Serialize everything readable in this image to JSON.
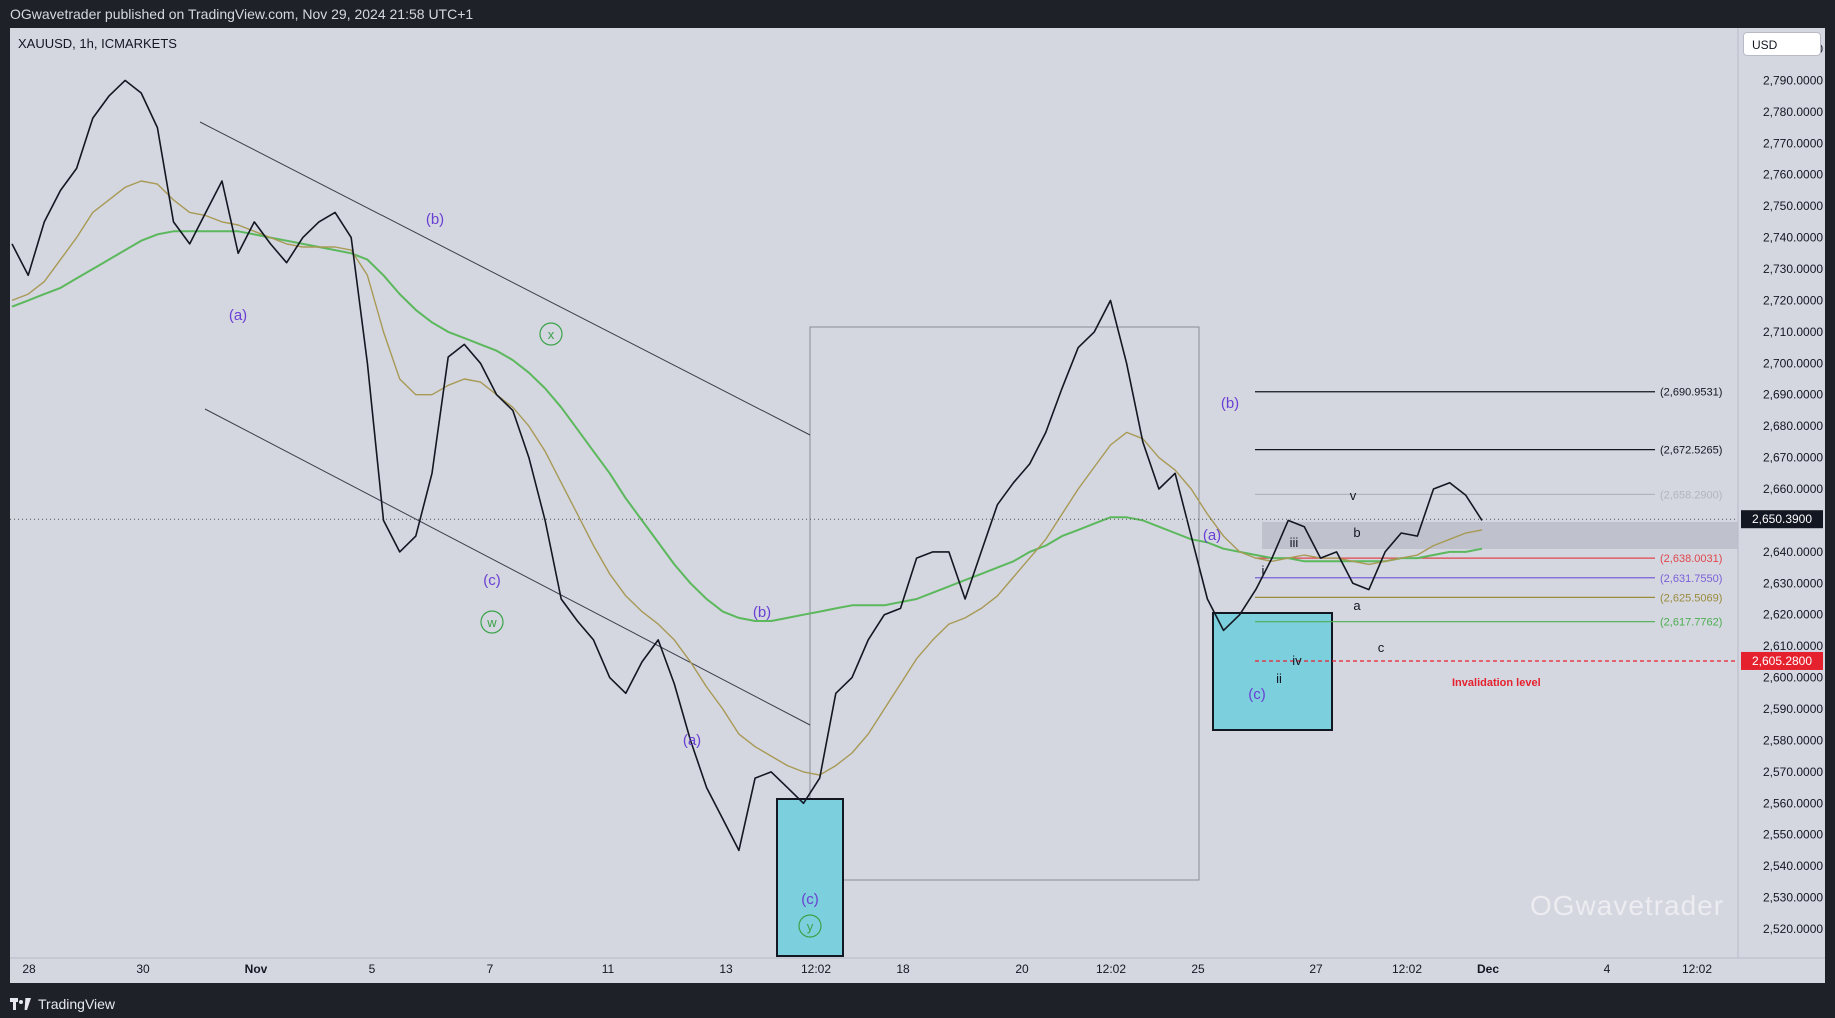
{
  "header": {
    "published": "OGwavetrader published on TradingView.com, Nov 29, 2024 21:58 UTC+1"
  },
  "footer": {
    "brand": "TradingView"
  },
  "chart_data": {
    "type": "line",
    "title": "XAUUSD, 1h, ICMARKETS",
    "currency": "USD",
    "ylim": [
      2510,
      2810
    ],
    "y_ticks": [
      "2,520.0000",
      "2,530.0000",
      "2,540.0000",
      "2,550.0000",
      "2,560.0000",
      "2,570.0000",
      "2,580.0000",
      "2,590.0000",
      "2,600.0000",
      "2,610.0000",
      "2,620.0000",
      "2,630.0000",
      "2,640.0000",
      "2,650.0000",
      "2,660.0000",
      "2,670.0000",
      "2,680.0000",
      "2,690.0000",
      "2,700.0000",
      "2,710.0000",
      "2,720.0000",
      "2,730.0000",
      "2,740.0000",
      "2,750.0000",
      "2,760.0000",
      "2,770.0000",
      "2,780.0000",
      "2,790.0000",
      "2,800.0000"
    ],
    "x_ticks": [
      "28",
      "30",
      "Nov",
      "5",
      "7",
      "11",
      "13",
      "12:02",
      "18",
      "20",
      "12:02",
      "25",
      "27",
      "12:02",
      "Dec",
      "4",
      "12:02"
    ],
    "series": [
      {
        "values": [
          2738,
          2728,
          2745,
          2755,
          2762,
          2778,
          2785,
          2790,
          2786,
          2775,
          2745,
          2738,
          2748,
          2758,
          2735,
          2745,
          2738,
          2732,
          2740,
          2745,
          2748,
          2740,
          2700,
          2650,
          2640,
          2645,
          2665,
          2702,
          2706,
          2700,
          2690,
          2685,
          2670,
          2650,
          2625,
          2618,
          2612,
          2600,
          2595,
          2605,
          2612,
          2598,
          2580,
          2565,
          2555,
          2545,
          2568,
          2570,
          2565,
          2560,
          2568,
          2595,
          2600,
          2612,
          2620,
          2622,
          2638,
          2640,
          2640,
          2625,
          2640,
          2655,
          2662,
          2668,
          2678,
          2692,
          2705,
          2710,
          2720,
          2700,
          2675,
          2660,
          2665,
          2645,
          2625,
          2615,
          2620,
          2628,
          2638,
          2650,
          2648,
          2638,
          2640,
          2630,
          2628,
          2640,
          2646,
          2645,
          2660,
          2662,
          2658,
          2650
        ]
      },
      {
        "name": "MA",
        "values": [
          2720,
          2722,
          2726,
          2733,
          2740,
          2748,
          2752,
          2756,
          2758,
          2757,
          2752,
          2748,
          2747,
          2745,
          2744,
          2742,
          2740,
          2738,
          2737,
          2737,
          2737,
          2736,
          2728,
          2710,
          2695,
          2690,
          2690,
          2693,
          2695,
          2694,
          2690,
          2686,
          2680,
          2672,
          2662,
          2652,
          2642,
          2633,
          2626,
          2621,
          2617,
          2612,
          2605,
          2597,
          2590,
          2582,
          2578,
          2575,
          2572,
          2570,
          2569,
          2572,
          2576,
          2582,
          2590,
          2598,
          2606,
          2612,
          2617,
          2619,
          2622,
          2626,
          2632,
          2638,
          2644,
          2652,
          2660,
          2667,
          2674,
          2678,
          2676,
          2670,
          2666,
          2660,
          2652,
          2645,
          2640,
          2638,
          2637,
          2638,
          2639,
          2638,
          2638,
          2637,
          2636,
          2637,
          2638,
          2639,
          2642,
          2644,
          2646,
          2647
        ]
      },
      {
        "name": "MA 200",
        "values": [
          2718,
          2720,
          2722,
          2724,
          2727,
          2730,
          2733,
          2736,
          2739,
          2741,
          2742,
          2742,
          2742,
          2742,
          2742,
          2741,
          2740,
          2739,
          2738,
          2737,
          2736,
          2735,
          2733,
          2728,
          2722,
          2717,
          2713,
          2710,
          2708,
          2706,
          2704,
          2701,
          2697,
          2692,
          2686,
          2679,
          2672,
          2665,
          2657,
          2650,
          2643,
          2636,
          2630,
          2625,
          2621,
          2619,
          2618,
          2618,
          2619,
          2620,
          2621,
          2622,
          2623,
          2623,
          2623,
          2624,
          2625,
          2627,
          2629,
          2631,
          2633,
          2635,
          2637,
          2640,
          2642,
          2645,
          2647,
          2649,
          2651,
          2651,
          2650,
          2648,
          2646,
          2644,
          2643,
          2641,
          2640,
          2639,
          2638,
          2638,
          2637,
          2637,
          2637,
          2637,
          2637,
          2637,
          2638,
          2638,
          2639,
          2640,
          2640,
          2641
        ]
      }
    ],
    "horizontal_levels": [
      {
        "label": "(2,690.9531)",
        "value": 2690.9531,
        "color": "#131722"
      },
      {
        "label": "(2,672.5265)",
        "value": 2672.5265,
        "color": "#131722"
      },
      {
        "label": "(2,658.2900)",
        "value": 2658.29,
        "color": "#b2b5be"
      },
      {
        "label": "(2,638.0031)",
        "value": 2638.0031,
        "color": "#e0474c"
      },
      {
        "label": "(2,631.7550)",
        "value": 2631.755,
        "color": "#7b61d9"
      },
      {
        "label": "(2,625.5069)",
        "value": 2625.5069,
        "color": "#9a8c3a"
      },
      {
        "label": "(2,617.7762)",
        "value": 2617.7762,
        "color": "#4caf50"
      }
    ],
    "price_tags": [
      {
        "label": "2,650.3900",
        "value": 2650.39,
        "color": "#131722"
      },
      {
        "label": "2,605.2800",
        "value": 2605.28,
        "color": "#e5212e"
      }
    ],
    "annotations": {
      "invalidation": "Invalidation level",
      "waves_purple": [
        "(a)",
        "(b)",
        "(c)",
        "(a)",
        "(b)",
        "(c)",
        "(a)",
        "(c)",
        "(b)"
      ],
      "waves_green": [
        "x",
        "w",
        "y"
      ],
      "waves_black": [
        "i",
        "ii",
        "iii",
        "iv",
        "v",
        "a",
        "b",
        "c"
      ]
    },
    "watermark": "OGwavetrader"
  }
}
